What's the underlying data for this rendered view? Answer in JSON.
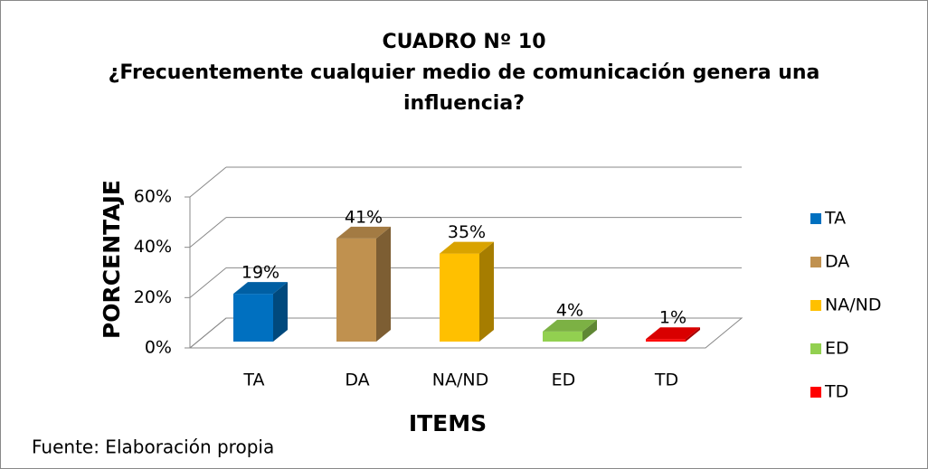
{
  "chart_data": {
    "type": "bar3d",
    "title": "CUADRO Nº 10",
    "subtitle": "¿Frecuentemente cualquier medio de comunicación genera una influencia?",
    "y_label": "PORCENTAJE",
    "x_label": "ITEMS",
    "source": "Fuente: Elaboración propia",
    "categories": [
      "TA",
      "DA",
      "NA/ND",
      "ED",
      "TD"
    ],
    "values": [
      19,
      41,
      35,
      4,
      1
    ],
    "value_labels": [
      "19%",
      "41%",
      "35%",
      "4%",
      "1%"
    ],
    "colors": [
      "#0070c0",
      "#c0914f",
      "#ffc000",
      "#92d050",
      "#ff0000"
    ],
    "ylim": [
      0,
      60
    ],
    "yticks": [
      {
        "value": 0,
        "label": "0%"
      },
      {
        "value": 20,
        "label": "20%"
      },
      {
        "value": 40,
        "label": "40%"
      },
      {
        "value": 60,
        "label": "60%"
      }
    ],
    "grid": true,
    "legend": "right"
  }
}
